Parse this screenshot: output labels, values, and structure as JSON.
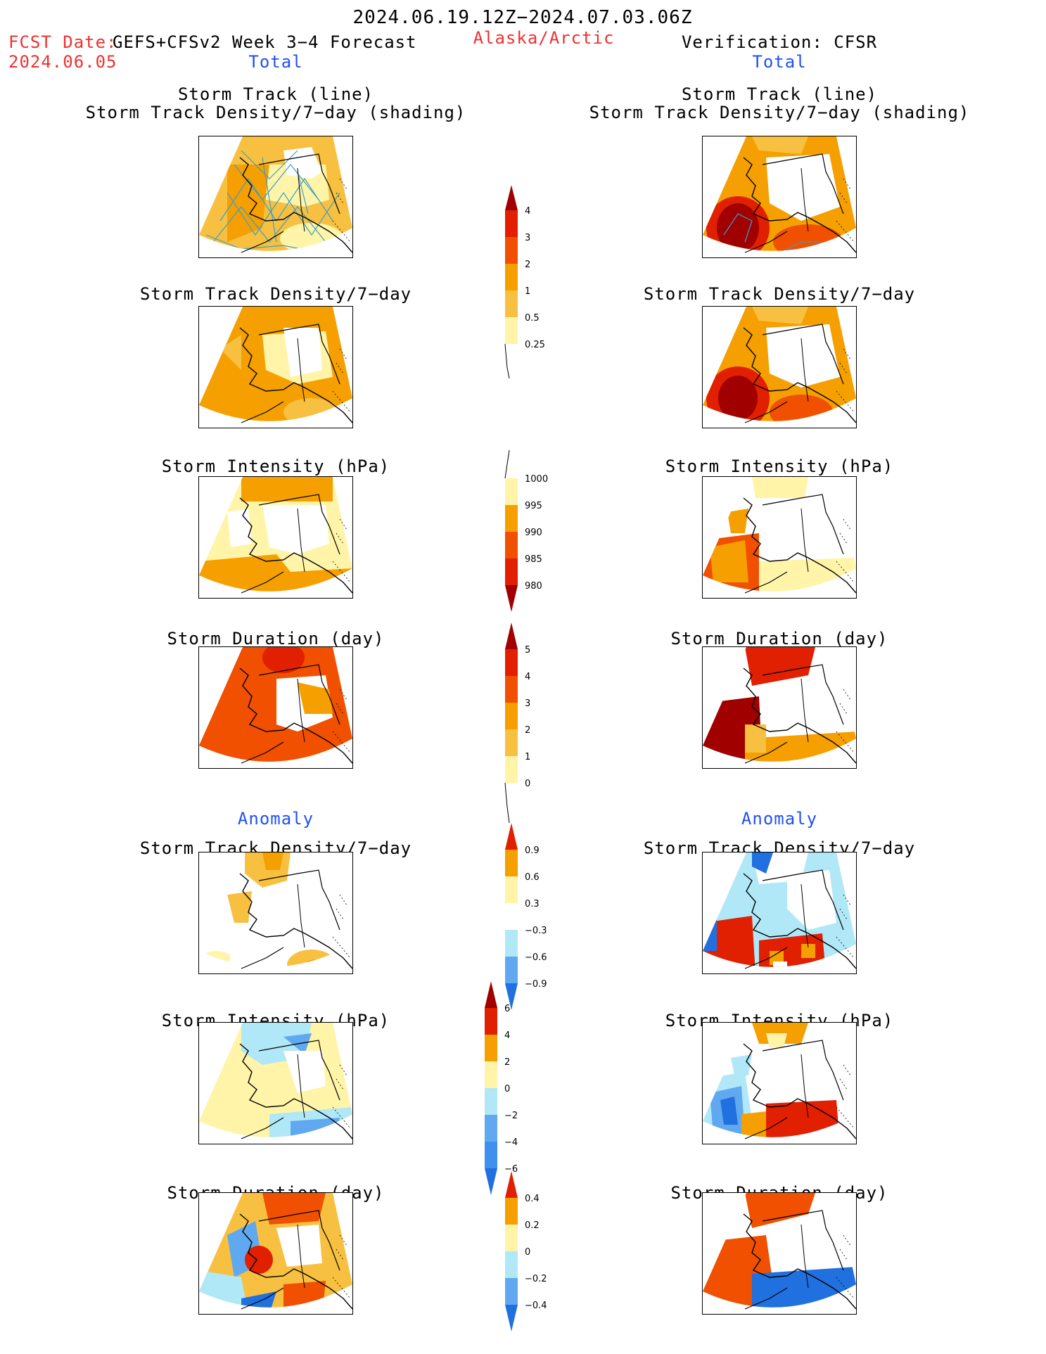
{
  "header": {
    "title": "2024.06.19.12Z−2024.07.03.06Z",
    "fcst_label": "FCST Date:",
    "fcst_desc": "GEFS+CFSv2 Week 3−4 Forecast",
    "fcst_date": "2024.06.05",
    "region": "Alaska/Arctic",
    "verification": "Verification: CFSR"
  },
  "sections": {
    "total_left": "Total",
    "total_right": "Total",
    "anomaly_left": "Anomaly",
    "anomaly_right": "Anomaly"
  },
  "panel_titles": {
    "track_line": "Storm Track (line)",
    "track_shading": "Storm Track Density/7−day (shading)",
    "track_density": "Storm Track Density/7−day",
    "intensity": "Storm Intensity (hPa)",
    "duration": "Storm Duration (day)"
  },
  "colorbars": {
    "density_total": [
      "4",
      "3",
      "2",
      "1",
      "0.5",
      "0.25"
    ],
    "intensity_total": [
      "1000",
      "995",
      "990",
      "985",
      "980"
    ],
    "duration_total": [
      "5",
      "4",
      "3",
      "2",
      "1",
      "0"
    ],
    "density_anom": [
      "0.9",
      "0.6",
      "0.3",
      "−0.3",
      "−0.6",
      "−0.9"
    ],
    "intensity_anom": [
      "6",
      "4",
      "2",
      "0",
      "−2",
      "−4",
      "−6"
    ],
    "duration_anom": [
      "0.4",
      "0.2",
      "0",
      "−0.2",
      "−0.4"
    ]
  },
  "colors": {
    "title_red": "#f03030",
    "section_blue": "#2050f0",
    "dark_red": "#a00000",
    "red": "#e02000",
    "red_orange": "#f05000",
    "orange": "#f5a000",
    "light_orange": "#f8c040",
    "pale_yellow": "#fff4a8",
    "light_blue": "#b0e8f8",
    "mid_blue": "#60a8f0",
    "blue": "#2070e0",
    "track_line": "#3aa0c8"
  }
}
